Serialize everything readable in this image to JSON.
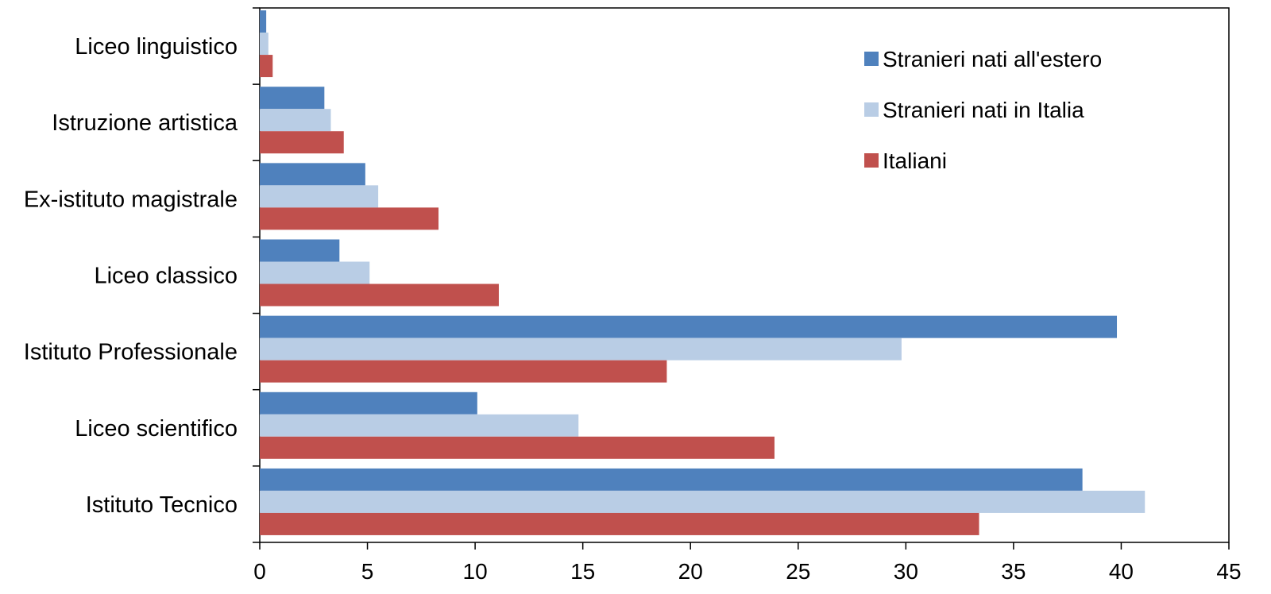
{
  "chart_data": {
    "type": "bar",
    "orientation": "horizontal",
    "title": "",
    "xlabel": "",
    "ylabel": "",
    "xlim": [
      0,
      45
    ],
    "xticks": [
      "0",
      "5",
      "10",
      "15",
      "20",
      "25",
      "30",
      "35",
      "40",
      "45"
    ],
    "grid": false,
    "legend_position": "top-right",
    "categories": [
      "Liceo linguistico",
      "Istruzione artistica",
      "Ex-istituto magistrale",
      "Liceo classico",
      "Istituto Professionale",
      "Liceo scientifico",
      "Istituto Tecnico"
    ],
    "series": [
      {
        "name": "Stranieri nati all'estero",
        "color": "#4F81BD",
        "values": [
          0.3,
          3.0,
          4.9,
          3.7,
          39.8,
          10.1,
          38.2
        ]
      },
      {
        "name": "Stranieri nati in Italia",
        "color": "#B9CDE5",
        "values": [
          0.4,
          3.3,
          5.5,
          5.1,
          29.8,
          14.8,
          41.1
        ]
      },
      {
        "name": "Italiani",
        "color": "#C0504D",
        "values": [
          0.6,
          3.9,
          8.3,
          11.1,
          18.9,
          23.9,
          33.4
        ]
      }
    ]
  }
}
